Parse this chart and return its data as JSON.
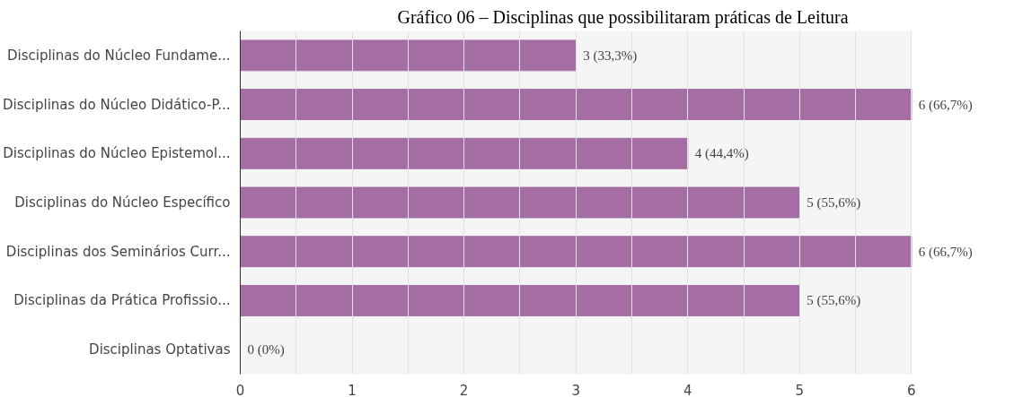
{
  "chart_data": {
    "type": "bar",
    "orientation": "horizontal",
    "title": "Gráfico 06 – Disciplinas que possibilitaram práticas de Leitura",
    "categories": [
      "Disciplinas do Núcleo Fundame...",
      "Disciplinas do Núcleo Didático-P...",
      "Disciplinas do Núcleo Epistemol...",
      "Disciplinas do Núcleo Específico",
      "Disciplinas dos Seminários Curr...",
      "Disciplinas da Prática Profissio...",
      "Disciplinas Optativas"
    ],
    "values": [
      3,
      6,
      4,
      5,
      6,
      5,
      0
    ],
    "value_labels": [
      "3 (33,3%)",
      "6 (66,7%)",
      "4 (44,4%)",
      "5 (55,6%)",
      "6 (66,7%)",
      "5 (55,6%)",
      "0 (0%)"
    ],
    "color": "#a46ea4",
    "xlim": [
      0,
      6
    ],
    "xticks": [
      0,
      {
        "value": 0.5,
        "label": null
      },
      1,
      {
        "value": 1.5,
        "label": null
      },
      2,
      {
        "value": 2.5,
        "label": null
      },
      3,
      {
        "value": 3.5,
        "label": null
      },
      4,
      {
        "value": 4.5,
        "label": null
      },
      5,
      {
        "value": 5.5,
        "label": null
      },
      6
    ],
    "grid": "x"
  }
}
